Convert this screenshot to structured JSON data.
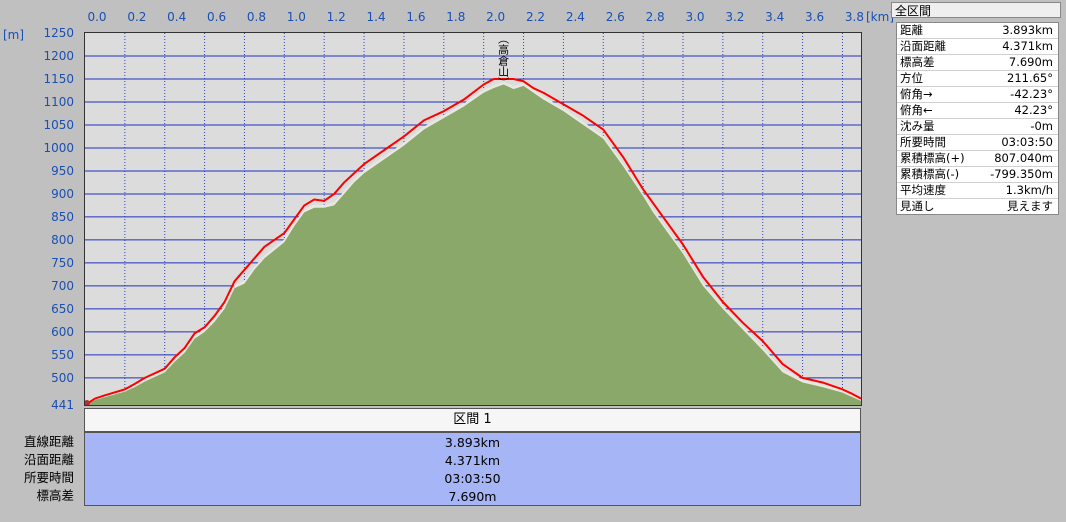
{
  "chart_data": {
    "type": "area",
    "xunit": "[km]",
    "yunit": "[m]",
    "xlim": [
      0,
      3.893
    ],
    "ylim": [
      441,
      1250
    ],
    "x_ticks": [
      "0.0",
      "0.2",
      "0.4",
      "0.6",
      "0.8",
      "1.0",
      "1.2",
      "1.4",
      "1.6",
      "1.8",
      "2.0",
      "2.2",
      "2.4",
      "2.6",
      "2.8",
      "3.0",
      "3.2",
      "3.4",
      "3.6",
      "3.8"
    ],
    "y_ticks": [
      "1250",
      "1200",
      "1150",
      "1100",
      "1050",
      "1000",
      "950",
      "900",
      "850",
      "800",
      "750",
      "700",
      "650",
      "600",
      "550",
      "500",
      "441"
    ],
    "peak_label": "（高倉山）",
    "series": [
      {
        "color": "#ff0000",
        "x": [
          0,
          0.05,
          0.1,
          0.2,
          0.25,
          0.3,
          0.4,
          0.45,
          0.5,
          0.55,
          0.6,
          0.65,
          0.7,
          0.75,
          0.8,
          0.85,
          0.9,
          1.0,
          1.05,
          1.1,
          1.15,
          1.2,
          1.25,
          1.3,
          1.35,
          1.4,
          1.5,
          1.6,
          1.7,
          1.8,
          1.9,
          2.0,
          2.05,
          2.1,
          2.15,
          2.2,
          2.25,
          2.3,
          2.4,
          2.5,
          2.6,
          2.7,
          2.8,
          2.85,
          2.9,
          3.0,
          3.1,
          3.2,
          3.3,
          3.4,
          3.5,
          3.6,
          3.7,
          3.8,
          3.85,
          3.893
        ],
        "y": [
          441,
          455,
          462,
          475,
          487,
          500,
          520,
          545,
          565,
          597,
          610,
          635,
          665,
          710,
          735,
          760,
          785,
          815,
          845,
          875,
          888,
          885,
          900,
          925,
          945,
          965,
          995,
          1025,
          1060,
          1080,
          1105,
          1138,
          1150,
          1150,
          1150,
          1145,
          1130,
          1120,
          1095,
          1070,
          1040,
          980,
          910,
          880,
          850,
          790,
          720,
          665,
          620,
          580,
          530,
          500,
          490,
          475,
          465,
          455
        ]
      },
      {
        "color": "#8aa86a",
        "x": [
          0,
          0.05,
          0.1,
          0.2,
          0.25,
          0.3,
          0.4,
          0.45,
          0.5,
          0.55,
          0.6,
          0.65,
          0.7,
          0.75,
          0.8,
          0.85,
          0.9,
          1.0,
          1.05,
          1.1,
          1.15,
          1.2,
          1.25,
          1.3,
          1.35,
          1.4,
          1.5,
          1.6,
          1.7,
          1.8,
          1.9,
          2.0,
          2.05,
          2.1,
          2.15,
          2.2,
          2.25,
          2.3,
          2.4,
          2.5,
          2.6,
          2.7,
          2.8,
          2.85,
          2.9,
          3.0,
          3.1,
          3.2,
          3.3,
          3.4,
          3.5,
          3.6,
          3.7,
          3.8,
          3.85,
          3.893
        ],
        "y": [
          441,
          452,
          458,
          470,
          480,
          492,
          512,
          535,
          555,
          585,
          600,
          622,
          650,
          695,
          705,
          735,
          760,
          795,
          830,
          860,
          870,
          870,
          875,
          900,
          925,
          945,
          975,
          1005,
          1040,
          1065,
          1090,
          1120,
          1130,
          1138,
          1128,
          1135,
          1120,
          1105,
          1080,
          1050,
          1020,
          960,
          895,
          860,
          830,
          770,
          700,
          650,
          605,
          560,
          512,
          490,
          480,
          468,
          458,
          450
        ]
      }
    ]
  },
  "info": {
    "title": "全区間",
    "rows": [
      {
        "k": "距離",
        "v": "3.893km"
      },
      {
        "k": "沿面距離",
        "v": "4.371km"
      },
      {
        "k": "標高差",
        "v": "7.690m"
      },
      {
        "k": "方位",
        "v": "211.65°"
      },
      {
        "k": "俯角→",
        "v": "-42.23°"
      },
      {
        "k": "俯角←",
        "v": "42.23°"
      },
      {
        "k": "沈み量",
        "v": "-0m"
      },
      {
        "k": "所要時間",
        "v": "03:03:50"
      },
      {
        "k": "累積標高(+)",
        "v": "807.040m"
      },
      {
        "k": "累積標高(-)",
        "v": "-799.350m"
      },
      {
        "k": "平均速度",
        "v": "1.3km/h"
      },
      {
        "k": "見通し",
        "v": "見えます"
      }
    ]
  },
  "section": {
    "header": "区間 1",
    "labels": [
      "直線距離",
      "沿面距離",
      "所要時間",
      "標高差"
    ],
    "values": [
      "3.893km",
      "4.371km",
      "03:03:50",
      "7.690m"
    ]
  }
}
